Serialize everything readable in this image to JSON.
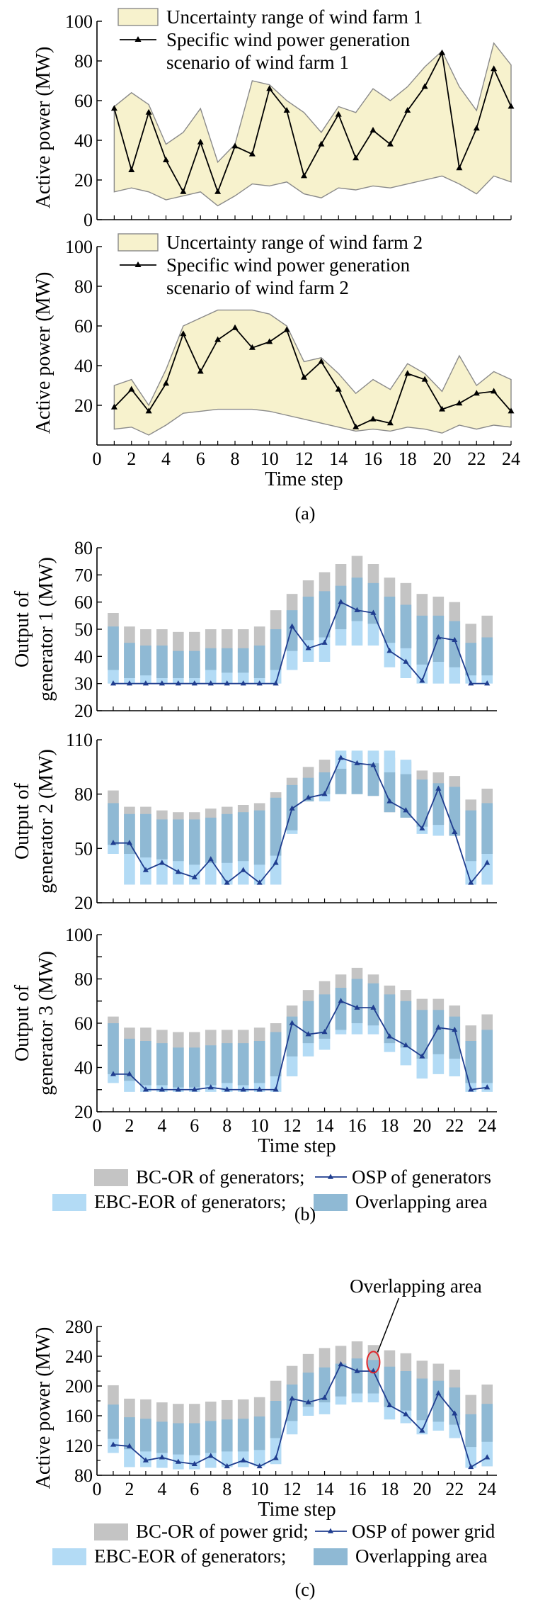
{
  "colors": {
    "band_fill": "#f7f2cd",
    "band_edge": "#8a8a8a",
    "bc_gray": "#c4c4c4",
    "ebc_light_blue": "#b3dbf5",
    "overlap_blue": "#8fb9d4",
    "osp_line": "#1f3d8f",
    "scenario_line": "#000000",
    "annotation_ellipse": "#e0262b"
  },
  "figure_captions": {
    "a": "(a)",
    "b": "(b)",
    "c": "(c)"
  },
  "legends": {
    "b": [
      {
        "key": "bc",
        "label": "BC-OR of generators;"
      },
      {
        "key": "osp",
        "label": "OSP of generators"
      },
      {
        "key": "ebc",
        "label": "EBC-EOR of generators;"
      },
      {
        "key": "overlap",
        "label": "Overlapping area"
      }
    ],
    "c": [
      {
        "key": "bc",
        "label": "BC-OR of power grid;"
      },
      {
        "key": "osp",
        "label": "OSP of power grid"
      },
      {
        "key": "ebc",
        "label": "EBC-EOR of generators;"
      },
      {
        "key": "overlap",
        "label": "Overlapping area"
      }
    ]
  },
  "chart_data": [
    {
      "type": "area",
      "panel": "a-1",
      "xlabel": "",
      "ylabel": "Active power (MW)",
      "xlim": [
        0,
        24
      ],
      "ylim": [
        0,
        100
      ],
      "yticks": [
        0,
        20,
        40,
        60,
        80,
        100
      ],
      "xticks": [],
      "legend": [
        "Uncertainty range of wind farm 1",
        "Specific wind power generation scenario of wind farm 1"
      ],
      "legend_lines": [
        "Uncertainty range of wind farm 1",
        "Specific wind power generation",
        "scenario of wind farm 1"
      ],
      "x": [
        1,
        2,
        3,
        4,
        5,
        6,
        7,
        8,
        9,
        10,
        11,
        12,
        13,
        14,
        15,
        16,
        17,
        18,
        19,
        20,
        21,
        22,
        23,
        24
      ],
      "upper": [
        57,
        64,
        58,
        38,
        44,
        56,
        29,
        38,
        70,
        68,
        60,
        54,
        44,
        57,
        54,
        66,
        60,
        67,
        77,
        85,
        67,
        55,
        89,
        78
      ],
      "lower": [
        14,
        16,
        14,
        10,
        12,
        14,
        7,
        12,
        18,
        17,
        19,
        13,
        11,
        16,
        15,
        17,
        16,
        18,
        20,
        22,
        18,
        13,
        22,
        19
      ],
      "scenario": [
        56,
        25,
        54,
        30,
        14,
        39,
        14,
        37,
        33,
        66,
        55,
        22,
        38,
        53,
        31,
        45,
        38,
        55,
        67,
        84,
        26,
        46,
        76,
        57
      ]
    },
    {
      "type": "area",
      "panel": "a-2",
      "xlabel": "Time step",
      "ylabel": "Active power (MW)",
      "xlim": [
        0,
        24
      ],
      "ylim": [
        0,
        100
      ],
      "yticks": [
        20,
        40,
        60,
        80,
        100
      ],
      "xticks": [
        0,
        2,
        4,
        6,
        8,
        10,
        12,
        14,
        16,
        18,
        20,
        22,
        24
      ],
      "legend": [
        "Uncertainty range of wind farm 2",
        "Specific wind power generation scenario of wind farm 2"
      ],
      "legend_lines": [
        "Uncertainty range of wind farm 2",
        "Specific wind power generation",
        "scenario of wind farm 2"
      ],
      "x": [
        1,
        2,
        3,
        4,
        5,
        6,
        7,
        8,
        9,
        10,
        11,
        12,
        13,
        14,
        15,
        16,
        17,
        18,
        19,
        20,
        21,
        22,
        23,
        24
      ],
      "upper": [
        30,
        33,
        20,
        38,
        60,
        64,
        68,
        68,
        68,
        66,
        60,
        42,
        44,
        36,
        26,
        33,
        28,
        41,
        36,
        27,
        45,
        30,
        37,
        33
      ],
      "lower": [
        8,
        9,
        5,
        10,
        16,
        17,
        18,
        18,
        18,
        17,
        15,
        13,
        11,
        9,
        7,
        8,
        7,
        9,
        8,
        6,
        10,
        8,
        10,
        9
      ],
      "scenario": [
        19,
        28,
        17,
        31,
        56,
        37,
        53,
        59,
        49,
        52,
        58,
        34,
        42,
        28,
        9,
        13,
        11,
        36,
        33,
        18,
        21,
        26,
        27,
        17
      ]
    },
    {
      "type": "bar",
      "panel": "b-1",
      "xlabel": "",
      "ylabel": "Output of generator 1 (MW)",
      "ylabel_lines": [
        "Output of",
        "generator 1 (MW)"
      ],
      "xlim": [
        0,
        24.6
      ],
      "ylim": [
        20,
        80
      ],
      "yticks": [
        20,
        30,
        40,
        50,
        60,
        70,
        80
      ],
      "xticks": [],
      "x": [
        1,
        2,
        3,
        4,
        5,
        6,
        7,
        8,
        9,
        10,
        11,
        12,
        13,
        14,
        15,
        16,
        17,
        18,
        19,
        20,
        21,
        22,
        23,
        24
      ],
      "bc_top": [
        56,
        51,
        50,
        50,
        49,
        49,
        50,
        50,
        50,
        51,
        57,
        63,
        68,
        71,
        74,
        77,
        74,
        69,
        67,
        63,
        62,
        60,
        52,
        55
      ],
      "overlap_top": [
        51,
        45,
        44,
        44,
        42,
        42,
        43,
        43,
        43,
        44,
        50,
        57,
        62,
        64,
        66,
        69,
        67,
        62,
        59,
        55,
        55,
        53,
        45,
        47
      ],
      "overlap_bot": [
        35,
        32,
        33,
        32,
        32,
        32,
        35,
        34,
        34,
        32,
        35,
        42,
        46,
        47,
        50,
        53,
        52,
        45,
        43,
        37,
        38,
        36,
        33,
        33
      ],
      "ebc_top": [
        46,
        38,
        39,
        38,
        37,
        37,
        38,
        37,
        37,
        37,
        43,
        50,
        55,
        57,
        59,
        61,
        60,
        55,
        53,
        48,
        49,
        48,
        39,
        40
      ],
      "ebc_bot": [
        30,
        30,
        30,
        30,
        30,
        30,
        30,
        30,
        30,
        30,
        30,
        35,
        38,
        38,
        44,
        44,
        44,
        36,
        32,
        30,
        30,
        30,
        30,
        30
      ],
      "osp": [
        30,
        30,
        30,
        30,
        30,
        30,
        30,
        30,
        30,
        30,
        30,
        51,
        43,
        45,
        60,
        57,
        56,
        42,
        38,
        31,
        47,
        46,
        30,
        30
      ]
    },
    {
      "type": "bar",
      "panel": "b-2",
      "xlabel": "",
      "ylabel": "Output of generator 2 (MW)",
      "ylabel_lines": [
        "Output of",
        "generator 2 (MW)"
      ],
      "xlim": [
        0,
        24.6
      ],
      "ylim": [
        20,
        110
      ],
      "yticks": [
        20,
        50,
        80,
        110
      ],
      "xticks": [],
      "x": [
        1,
        2,
        3,
        4,
        5,
        6,
        7,
        8,
        9,
        10,
        11,
        12,
        13,
        14,
        15,
        16,
        17,
        18,
        19,
        20,
        21,
        22,
        23,
        24
      ],
      "bc_top": [
        82,
        73,
        73,
        71,
        70,
        70,
        72,
        73,
        74,
        75,
        81,
        89,
        95,
        99,
        102,
        103,
        103,
        100,
        98,
        93,
        92,
        90,
        77,
        83
      ],
      "overlap_top": [
        75,
        69,
        69,
        66,
        66,
        66,
        67,
        69,
        70,
        71,
        78,
        85,
        89,
        92,
        94,
        97,
        97,
        92,
        91,
        88,
        86,
        84,
        71,
        75
      ],
      "overlap_bot": [
        52,
        47,
        45,
        44,
        43,
        41,
        42,
        42,
        43,
        41,
        46,
        60,
        76,
        80,
        80,
        80,
        79,
        70,
        67,
        62,
        63,
        57,
        43,
        47
      ],
      "ebc_top": [
        62,
        60,
        57,
        54,
        52,
        51,
        52,
        54,
        55,
        55,
        66,
        78,
        86,
        92,
        104,
        104,
        104,
        104,
        99,
        84,
        75,
        72,
        60,
        61
      ],
      "ebc_bot": [
        47,
        30,
        30,
        30,
        30,
        30,
        30,
        30,
        30,
        30,
        30,
        58,
        76,
        76,
        80,
        80,
        80,
        74,
        67,
        58,
        57,
        57,
        30,
        30
      ],
      "osp": [
        53,
        53,
        38,
        42,
        37,
        34,
        44,
        31,
        38,
        31,
        42,
        72,
        78,
        80,
        100,
        97,
        96,
        76,
        71,
        61,
        83,
        59,
        31,
        42
      ]
    },
    {
      "type": "bar",
      "panel": "b-3",
      "xlabel": "Time step",
      "ylabel": "Output of generator 3 (MW)",
      "ylabel_lines": [
        "Output of",
        "generator 3 (MW)"
      ],
      "xlim": [
        0,
        24.6
      ],
      "ylim": [
        20,
        100
      ],
      "yticks": [
        20,
        30,
        40,
        50,
        60,
        70,
        80,
        90,
        100
      ],
      "ytick_labels": [
        20,
        40,
        60,
        80,
        100
      ],
      "xticks": [
        0,
        2,
        4,
        6,
        8,
        10,
        12,
        14,
        16,
        18,
        20,
        22,
        24
      ],
      "x": [
        1,
        2,
        3,
        4,
        5,
        6,
        7,
        8,
        9,
        10,
        11,
        12,
        13,
        14,
        15,
        16,
        17,
        18,
        19,
        20,
        21,
        22,
        23,
        24
      ],
      "bc_top": [
        63,
        58,
        58,
        57,
        56,
        56,
        57,
        57,
        57,
        58,
        60,
        68,
        75,
        79,
        82,
        85,
        82,
        77,
        75,
        71,
        71,
        68,
        59,
        64
      ],
      "overlap_top": [
        60,
        53,
        52,
        51,
        49,
        49,
        50,
        51,
        51,
        52,
        56,
        63,
        70,
        73,
        76,
        80,
        78,
        73,
        70,
        66,
        66,
        63,
        52,
        57
      ],
      "overlap_bot": [
        37,
        34,
        32,
        32,
        31,
        31,
        32,
        33,
        32,
        33,
        36,
        45,
        51,
        53,
        57,
        60,
        59,
        51,
        49,
        44,
        46,
        44,
        33,
        33
      ],
      "ebc_top": [
        42,
        38,
        37,
        37,
        36,
        36,
        37,
        37,
        37,
        38,
        40,
        52,
        61,
        64,
        68,
        72,
        71,
        64,
        61,
        56,
        56,
        53,
        38,
        40
      ],
      "ebc_bot": [
        33,
        29,
        29,
        29,
        29,
        29,
        29,
        29,
        29,
        29,
        29,
        36,
        45,
        48,
        55,
        55,
        55,
        47,
        41,
        35,
        37,
        36,
        29,
        29
      ],
      "osp": [
        37,
        37,
        30,
        30,
        30,
        30,
        31,
        30,
        30,
        30,
        30,
        60,
        55,
        56,
        70,
        67,
        67,
        54,
        50,
        45,
        58,
        57,
        30,
        31
      ]
    },
    {
      "type": "bar",
      "panel": "c",
      "xlabel": "Time step",
      "ylabel": "Active power (MW)",
      "xlim": [
        0,
        24.6
      ],
      "ylim": [
        80,
        280
      ],
      "yticks": [
        80,
        120,
        160,
        200,
        240,
        280
      ],
      "ytick_labels": [
        80,
        120,
        160,
        200,
        240,
        280
      ],
      "yticks_minor": [
        100,
        140,
        180,
        220,
        260
      ],
      "xticks": [
        0,
        2,
        4,
        6,
        8,
        10,
        12,
        14,
        16,
        18,
        20,
        22,
        24
      ],
      "annotation": {
        "text": "Overlapping area",
        "x": 17,
        "y": 232
      },
      "x": [
        1,
        2,
        3,
        4,
        5,
        6,
        7,
        8,
        9,
        10,
        11,
        12,
        13,
        14,
        15,
        16,
        17,
        18,
        19,
        20,
        21,
        22,
        23,
        24
      ],
      "bc_top": [
        201,
        183,
        182,
        178,
        176,
        176,
        179,
        181,
        182,
        185,
        207,
        227,
        243,
        251,
        254,
        260,
        255,
        248,
        244,
        234,
        230,
        222,
        188,
        202
      ],
      "overlap_top": [
        175,
        158,
        156,
        152,
        150,
        150,
        153,
        155,
        156,
        159,
        180,
        202,
        218,
        225,
        230,
        237,
        235,
        226,
        220,
        210,
        207,
        198,
        162,
        176
      ],
      "overlap_bot": [
        129,
        115,
        112,
        110,
        108,
        107,
        110,
        112,
        112,
        114,
        130,
        153,
        172,
        178,
        186,
        190,
        190,
        172,
        167,
        154,
        152,
        148,
        118,
        125
      ],
      "ebc_top": [
        148,
        128,
        125,
        122,
        120,
        120,
        122,
        124,
        124,
        126,
        145,
        170,
        188,
        194,
        200,
        205,
        203,
        188,
        182,
        170,
        168,
        165,
        130,
        140
      ],
      "ebc_bot": [
        110,
        91,
        91,
        90,
        88,
        88,
        90,
        91,
        91,
        92,
        95,
        135,
        160,
        162,
        175,
        178,
        178,
        155,
        150,
        135,
        140,
        130,
        90,
        92
      ],
      "osp": [
        121,
        119,
        100,
        104,
        98,
        95,
        106,
        92,
        100,
        92,
        103,
        183,
        178,
        184,
        229,
        220,
        220,
        174,
        162,
        140,
        190,
        163,
        91,
        104
      ]
    }
  ]
}
